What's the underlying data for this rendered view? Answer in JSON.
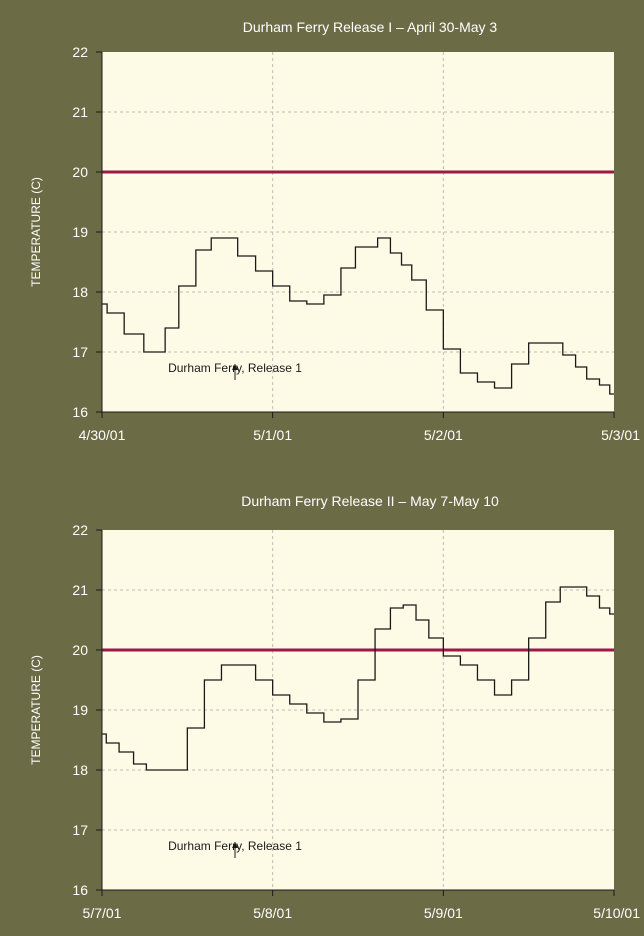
{
  "colors": {
    "background": "#6b6b46",
    "plot_area": "#fdfbe6",
    "threshold": "#9a1a47",
    "series": "#1a1a1a",
    "grid": "#bdbdb4"
  },
  "chart_data": [
    {
      "type": "line",
      "title": "Durham Ferry Release I – April 30-May 3",
      "ylabel": "TEMPERATURE (C)",
      "xlabel": "",
      "ylim": [
        16,
        22
      ],
      "xlim": [
        0,
        3
      ],
      "x_tick_labels": [
        "4/30/01",
        "5/1/01",
        "5/2/01",
        "5/3/01"
      ],
      "y_tick_labels": [
        "16",
        "17",
        "18",
        "19",
        "20",
        "21",
        "22"
      ],
      "grid": true,
      "threshold": 20,
      "annotation": {
        "text": "Durham Ferry, Release 1",
        "x": 0.78
      },
      "series": [
        {
          "x": [
            0,
            0.06,
            0.2,
            0.29,
            0.34,
            0.4,
            0.5,
            0.6,
            0.68,
            0.74,
            0.85,
            0.95,
            1.05,
            1.15,
            1.25,
            1.35,
            1.45,
            1.52,
            1.58,
            1.65,
            1.73,
            1.78,
            1.85,
            1.95,
            2.05,
            2.15,
            2.25,
            2.35,
            2.45,
            2.55,
            2.65,
            2.75,
            2.8,
            2.88,
            2.95,
            3.0
          ],
          "y": [
            17.8,
            17.65,
            17.3,
            17.0,
            17.0,
            17.4,
            18.1,
            18.7,
            18.9,
            18.9,
            18.6,
            18.35,
            18.1,
            17.85,
            17.8,
            17.95,
            18.4,
            18.75,
            18.75,
            18.9,
            18.65,
            18.45,
            18.2,
            17.7,
            17.05,
            16.65,
            16.5,
            16.4,
            16.8,
            17.15,
            17.15,
            16.95,
            16.75,
            16.55,
            16.45,
            16.3
          ]
        }
      ]
    },
    {
      "type": "line",
      "title": "Durham Ferry Release II – May 7-May 10",
      "ylabel": "TEMPERATURE (C)",
      "xlabel": "",
      "ylim": [
        16,
        22
      ],
      "xlim": [
        0,
        3
      ],
      "x_tick_labels": [
        "5/7/01",
        "5/8/01",
        "5/9/01",
        "5/10/01"
      ],
      "y_tick_labels": [
        "16",
        "17",
        "18",
        "19",
        "20",
        "21",
        "22"
      ],
      "grid": true,
      "threshold": 20,
      "annotation": {
        "text": "Durham Ferry, Release 1",
        "x": 0.78
      },
      "series": [
        {
          "x": [
            0,
            0.05,
            0.15,
            0.22,
            0.3,
            0.45,
            0.55,
            0.65,
            0.75,
            0.85,
            0.95,
            1.05,
            1.15,
            1.25,
            1.35,
            1.45,
            1.55,
            1.65,
            1.73,
            1.8,
            1.88,
            1.95,
            2.05,
            2.15,
            2.25,
            2.35,
            2.45,
            2.55,
            2.65,
            2.72,
            2.8,
            2.88,
            2.95,
            3.0
          ],
          "y": [
            18.6,
            18.45,
            18.3,
            18.1,
            18.0,
            18.0,
            18.7,
            19.5,
            19.75,
            19.75,
            19.5,
            19.25,
            19.1,
            18.95,
            18.8,
            18.85,
            19.5,
            20.35,
            20.7,
            20.75,
            20.5,
            20.2,
            19.9,
            19.75,
            19.5,
            19.25,
            19.5,
            20.2,
            20.8,
            21.05,
            21.05,
            20.9,
            20.7,
            20.6
          ]
        }
      ]
    }
  ]
}
